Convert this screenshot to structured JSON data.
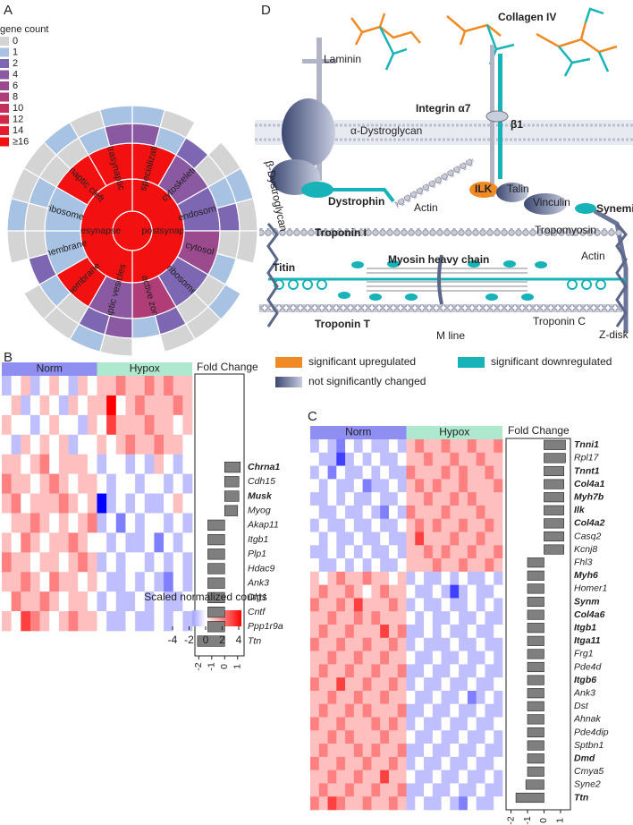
{
  "panel_labels": [
    "A",
    "B",
    "C",
    "D"
  ],
  "sunburst": {
    "legend_title": "gene count",
    "legend": [
      {
        "value": 0,
        "color": "#d4d4d4"
      },
      {
        "value": 1,
        "color": "#a7c2e2"
      },
      {
        "value": 2,
        "color": "#7d66b2"
      },
      {
        "value": 4,
        "color": "#8b58a2"
      },
      {
        "value": 6,
        "color": "#9c4a8e"
      },
      {
        "value": 8,
        "color": "#b03d78"
      },
      {
        "value": 10,
        "color": "#c2305e"
      },
      {
        "value": 12,
        "color": "#d42646"
      },
      {
        "value": 14,
        "color": "#e41c2e"
      },
      {
        "value": {
          "value": 16,
          "label": "≥16"
        },
        "color": "#f21010"
      }
    ],
    "center": 16,
    "ring1": [
      {
        "name": "postsynapse",
        "count": 16
      },
      {
        "name": "presynapse",
        "count": 16
      }
    ],
    "ring2": [
      {
        "name": "specialization",
        "count": 16
      },
      {
        "name": "cytoskeleton",
        "count": 4
      },
      {
        "name": "endosome",
        "count": 2
      },
      {
        "name": "cytosol",
        "count": 6
      },
      {
        "name": "ribosome",
        "count": 2
      },
      {
        "name": "active zone",
        "count": 8
      },
      {
        "name": "synaptic vesicles",
        "count": 4
      },
      {
        "name": "membrane",
        "count": 16
      },
      {
        "name": "membrane",
        "count": 1
      },
      {
        "name": "ribosome",
        "count": 1
      },
      {
        "name": "synaptic cleft",
        "count": 16
      },
      {
        "name": "extrasynaptic",
        "count": 16
      }
    ],
    "ring3": [
      4,
      1,
      2,
      0,
      1,
      2,
      0,
      1,
      0,
      0,
      2,
      1,
      4,
      2,
      0,
      1,
      2,
      0,
      0,
      1,
      0,
      0,
      1,
      4
    ],
    "ring4": [
      1,
      0,
      null,
      0,
      1,
      0,
      0,
      null,
      1,
      0,
      0,
      null,
      0,
      1,
      0,
      0,
      null,
      0,
      1,
      0,
      0,
      1,
      0,
      1
    ]
  },
  "heatmap_b": {
    "groups": [
      "Norm",
      "Hypox"
    ],
    "group_colors": [
      "#8f8ff2",
      "#aee8cf"
    ],
    "matrix": [
      [
        -1,
        0,
        1,
        -1,
        0,
        1,
        0,
        -1,
        1,
        0,
        1,
        1,
        2,
        1,
        1,
        2,
        1,
        2,
        1,
        1
      ],
      [
        0,
        1,
        -1,
        0,
        1,
        0,
        -1,
        1,
        0,
        1,
        1,
        4,
        0,
        1,
        2,
        1,
        1,
        1,
        2,
        1
      ],
      [
        1,
        0,
        0,
        -1,
        0,
        1,
        0,
        0,
        -1,
        1,
        0,
        3,
        1,
        1,
        1,
        2,
        1,
        1,
        0,
        1
      ],
      [
        0,
        -1,
        1,
        0,
        1,
        0,
        1,
        -1,
        0,
        0,
        1,
        0,
        1,
        2,
        1,
        1,
        2,
        1,
        1,
        0
      ],
      [
        1,
        1,
        0,
        1,
        2,
        0,
        1,
        1,
        1,
        0,
        -1,
        0,
        0,
        -1,
        0,
        -1,
        1,
        0,
        -1,
        0
      ],
      [
        2,
        1,
        1,
        0,
        1,
        2,
        1,
        0,
        1,
        1,
        0,
        -1,
        0,
        0,
        -1,
        0,
        0,
        -1,
        0,
        -1
      ],
      [
        1,
        2,
        0,
        1,
        1,
        1,
        2,
        1,
        0,
        1,
        -4,
        -1,
        0,
        -1,
        0,
        -1,
        -1,
        0,
        1,
        0
      ],
      [
        0,
        1,
        1,
        2,
        1,
        0,
        1,
        0,
        1,
        2,
        -1,
        0,
        -2,
        0,
        -1,
        0,
        0,
        -1,
        0,
        -1
      ],
      [
        1,
        0,
        2,
        1,
        0,
        1,
        1,
        2,
        1,
        0,
        0,
        -1,
        0,
        -1,
        -1,
        0,
        -2,
        0,
        -1,
        0
      ],
      [
        2,
        1,
        1,
        0,
        1,
        1,
        0,
        1,
        2,
        1,
        -1,
        0,
        -1,
        0,
        0,
        -1,
        0,
        -1,
        0,
        -1
      ],
      [
        1,
        1,
        2,
        1,
        0,
        2,
        1,
        1,
        0,
        1,
        0,
        -1,
        -1,
        0,
        -1,
        0,
        -1,
        -2,
        0,
        -1
      ],
      [
        0,
        2,
        1,
        1,
        2,
        1,
        0,
        1,
        1,
        0,
        -1,
        0,
        -1,
        -1,
        0,
        -1,
        0,
        -1,
        -1,
        0
      ],
      [
        1,
        0,
        3,
        2,
        1,
        0,
        1,
        2,
        1,
        1,
        0,
        -1,
        -1,
        0,
        -1,
        -1,
        0,
        -1,
        0,
        -1
      ]
    ],
    "fold_change": {
      "title": "Fold Change",
      "genes": [
        "Chrna1",
        "Cdh15",
        "Musk",
        "Myog",
        "Akap11",
        "Itgb1",
        "Plp1",
        "Hdac9",
        "Ank3",
        "Dlg1",
        "Cntf",
        "Ppp1r9a",
        "Ttn"
      ],
      "bold": [
        true,
        false,
        true,
        false,
        false,
        false,
        false,
        false,
        false,
        false,
        false,
        false,
        false
      ],
      "values": [
        1.2,
        1.1,
        1.1,
        1.0,
        -1.3,
        -1.3,
        -1.3,
        -1.3,
        -1.3,
        -1.3,
        -1.3,
        -1.3,
        -2.1
      ],
      "xlim": [
        -2.3,
        1.5
      ],
      "xticks": [
        -2,
        -1,
        0,
        1
      ],
      "color": "#7f7f7f"
    }
  },
  "heatmap_c": {
    "groups": [
      "Norm",
      "Hypox"
    ],
    "group_colors": [
      "#8f8ff2",
      "#aee8cf"
    ],
    "matrix": [
      [
        -1,
        0,
        -1,
        -2,
        0,
        -1,
        0,
        -1,
        -1,
        0,
        -1,
        1,
        2,
        1,
        1,
        2,
        1,
        1,
        2,
        1,
        1,
        2
      ],
      [
        0,
        -1,
        -1,
        -3,
        -1,
        0,
        -1,
        0,
        -1,
        -1,
        0,
        1,
        1,
        2,
        1,
        1,
        2,
        1,
        1,
        2,
        1,
        1
      ],
      [
        -1,
        0,
        -2,
        0,
        -1,
        -1,
        0,
        -1,
        0,
        -1,
        -1,
        2,
        1,
        1,
        1,
        2,
        1,
        2,
        1,
        1,
        2,
        1
      ],
      [
        0,
        -1,
        0,
        -1,
        -1,
        0,
        -2,
        -1,
        -1,
        0,
        -1,
        1,
        2,
        1,
        2,
        1,
        1,
        2,
        1,
        1,
        1,
        2
      ],
      [
        -1,
        -1,
        0,
        -1,
        0,
        -1,
        -1,
        0,
        -1,
        -1,
        0,
        1,
        1,
        2,
        1,
        1,
        2,
        1,
        2,
        1,
        1,
        1
      ],
      [
        0,
        -1,
        -1,
        0,
        -1,
        -1,
        0,
        -1,
        -2,
        0,
        -1,
        2,
        1,
        1,
        1,
        2,
        1,
        1,
        1,
        2,
        1,
        1
      ],
      [
        -1,
        0,
        -1,
        -1,
        0,
        -1,
        -1,
        0,
        -1,
        -1,
        0,
        1,
        2,
        1,
        2,
        1,
        1,
        2,
        1,
        1,
        2,
        1
      ],
      [
        0,
        -1,
        0,
        -1,
        -1,
        0,
        -1,
        -1,
        0,
        -1,
        -1,
        1,
        3,
        1,
        1,
        1,
        2,
        1,
        1,
        2,
        1,
        1
      ],
      [
        -1,
        -1,
        0,
        -1,
        0,
        -1,
        0,
        -1,
        -1,
        0,
        -1,
        1,
        1,
        2,
        1,
        2,
        1,
        1,
        2,
        1,
        1,
        2
      ],
      [
        0,
        -1,
        -1,
        0,
        -1,
        0,
        -1,
        0,
        -1,
        -1,
        0,
        1,
        1,
        1,
        2,
        1,
        1,
        2,
        1,
        1,
        2,
        1
      ],
      [
        1,
        0,
        1,
        2,
        1,
        1,
        2,
        1,
        1,
        0,
        1,
        -1,
        0,
        -1,
        -1,
        0,
        -1,
        0,
        -1,
        -1,
        0,
        -1
      ],
      [
        1,
        2,
        1,
        1,
        2,
        1,
        0,
        1,
        2,
        1,
        1,
        0,
        -1,
        -1,
        0,
        -1,
        -3,
        -1,
        0,
        -1,
        -1,
        0
      ],
      [
        2,
        1,
        1,
        2,
        1,
        3,
        1,
        1,
        1,
        2,
        1,
        -1,
        0,
        -1,
        -1,
        0,
        -1,
        -1,
        0,
        -1,
        0,
        -1
      ],
      [
        1,
        1,
        2,
        1,
        1,
        2,
        1,
        2,
        1,
        1,
        1,
        0,
        -1,
        0,
        -1,
        -1,
        0,
        -1,
        -1,
        0,
        -1,
        -1
      ],
      [
        1,
        2,
        1,
        1,
        2,
        1,
        1,
        1,
        3,
        1,
        2,
        -1,
        -1,
        0,
        -1,
        0,
        -1,
        -1,
        0,
        -1,
        -1,
        0
      ],
      [
        2,
        1,
        1,
        2,
        1,
        1,
        2,
        1,
        1,
        2,
        1,
        -1,
        0,
        -1,
        -1,
        -1,
        0,
        -1,
        -1,
        0,
        -1,
        -1
      ],
      [
        1,
        1,
        2,
        1,
        1,
        2,
        1,
        1,
        2,
        1,
        1,
        0,
        -1,
        -1,
        0,
        -1,
        -1,
        0,
        -1,
        -1,
        0,
        -1
      ],
      [
        1,
        2,
        1,
        1,
        2,
        1,
        1,
        2,
        1,
        1,
        2,
        -1,
        -1,
        0,
        -1,
        -1,
        0,
        -1,
        -1,
        0,
        -1,
        -1
      ],
      [
        2,
        1,
        1,
        3,
        1,
        1,
        2,
        1,
        1,
        2,
        1,
        -1,
        0,
        -1,
        -1,
        0,
        -1,
        -1,
        0,
        -1,
        -1,
        0
      ],
      [
        1,
        1,
        2,
        1,
        1,
        2,
        1,
        1,
        2,
        1,
        1,
        0,
        -1,
        -1,
        0,
        -1,
        -1,
        0,
        -2,
        -1,
        0,
        -1
      ],
      [
        1,
        2,
        1,
        1,
        2,
        1,
        2,
        1,
        1,
        1,
        2,
        -1,
        -1,
        0,
        -1,
        -1,
        0,
        -1,
        -1,
        0,
        -1,
        -1
      ],
      [
        2,
        1,
        1,
        2,
        1,
        1,
        1,
        2,
        1,
        2,
        1,
        -1,
        0,
        -1,
        -1,
        0,
        -1,
        -1,
        0,
        -1,
        -1,
        0
      ],
      [
        1,
        1,
        2,
        1,
        2,
        1,
        1,
        1,
        2,
        1,
        1,
        0,
        -1,
        -1,
        0,
        -1,
        -1,
        0,
        -1,
        -1,
        0,
        -1
      ],
      [
        1,
        2,
        1,
        1,
        1,
        2,
        1,
        2,
        1,
        1,
        2,
        -1,
        -1,
        0,
        -1,
        -1,
        0,
        -1,
        -1,
        0,
        -1,
        -1
      ],
      [
        2,
        1,
        1,
        2,
        1,
        1,
        2,
        1,
        1,
        2,
        1,
        -1,
        0,
        -1,
        -1,
        0,
        -1,
        -1,
        0,
        -1,
        -1,
        0
      ],
      [
        1,
        1,
        2,
        1,
        1,
        2,
        1,
        1,
        3,
        1,
        1,
        0,
        -1,
        -1,
        0,
        -1,
        -1,
        0,
        -1,
        -1,
        0,
        -1
      ],
      [
        1,
        2,
        1,
        1,
        2,
        1,
        1,
        2,
        1,
        1,
        2,
        -1,
        -1,
        0,
        -1,
        -1,
        0,
        -1,
        -1,
        0,
        -1,
        -1
      ],
      [
        2,
        1,
        3,
        2,
        1,
        1,
        2,
        1,
        1,
        2,
        1,
        -1,
        0,
        -1,
        -1,
        0,
        -1,
        -2,
        0,
        -1,
        -1,
        0
      ]
    ],
    "fold_change": {
      "title": "Fold Change",
      "genes": [
        "Tnni1",
        "Rpl17",
        "Tnnt1",
        "Col4a1",
        "Myh7b",
        "Ilk",
        "Col4a2",
        "Casq2",
        "Kcnj8",
        "Fhl3",
        "Myh6",
        "Homer1",
        "Synm",
        "Col4a6",
        "Itgb1",
        "Itga11",
        "Frg1",
        "Pde4d",
        "Itgb6",
        "Ank3",
        "Dst",
        "Ahnak",
        "Pde4dip",
        "Sptbn1",
        "Dmd",
        "Cmya5",
        "Syne2",
        "Ttn"
      ],
      "bold": [
        true,
        false,
        true,
        true,
        true,
        true,
        true,
        false,
        false,
        false,
        true,
        false,
        true,
        true,
        true,
        true,
        false,
        false,
        true,
        false,
        false,
        false,
        false,
        false,
        true,
        false,
        false,
        true
      ],
      "values": [
        1.3,
        1.3,
        1.2,
        1.2,
        1.2,
        1.2,
        1.2,
        1.2,
        1.2,
        -1.0,
        -1.0,
        -1.0,
        -1.0,
        -1.0,
        -1.0,
        -1.0,
        -1.0,
        -1.0,
        -1.0,
        -1.0,
        -1.0,
        -1.0,
        -1.0,
        -1.0,
        -1.0,
        -1.0,
        -1.1,
        -1.7
      ],
      "xlim": [
        -2.3,
        1.6
      ],
      "xticks": [
        -2,
        -1,
        0,
        1
      ],
      "color": "#7f7f7f"
    }
  },
  "colorbar": {
    "title": "Scaled normalized counts",
    "lim": [
      -4,
      4
    ],
    "ticks": [
      -4,
      -2,
      0,
      2,
      4
    ]
  },
  "diagram": {
    "labels": [
      {
        "text": "Laminin",
        "bold": false
      },
      {
        "text": "α-Dystroglycan",
        "bold": false
      },
      {
        "text": "β-Dystroglycan",
        "bold": false
      },
      {
        "text": "Dystrophin",
        "bold": true
      },
      {
        "text": "Actin",
        "bold": false
      },
      {
        "text": "Collagen IV",
        "bold": true
      },
      {
        "text": "Integrin α7",
        "bold": true
      },
      {
        "text": "β1",
        "bold": true
      },
      {
        "text": "ILK",
        "bold": true
      },
      {
        "text": "Talin",
        "bold": false
      },
      {
        "text": "Vinculin",
        "bold": false
      },
      {
        "text": "Synemin",
        "bold": true
      },
      {
        "text": "Tropomyosin",
        "bold": false
      },
      {
        "text": "Actin",
        "bold": false
      },
      {
        "text": "Troponin I",
        "bold": true
      },
      {
        "text": "Titin",
        "bold": true
      },
      {
        "text": "Myosin heavy chain",
        "bold": true
      },
      {
        "text": "Troponin T",
        "bold": true
      },
      {
        "text": "M line",
        "bold": false
      },
      {
        "text": "Troponin C",
        "bold": false
      },
      {
        "text": "Z-disk",
        "bold": false
      }
    ],
    "legend": [
      {
        "text": "significant upregulated",
        "color": "#f08a24"
      },
      {
        "text": "significant downregulated",
        "color": "#17b3b8"
      },
      {
        "text": "not significantly changed",
        "color": "#7a86a8"
      }
    ]
  }
}
